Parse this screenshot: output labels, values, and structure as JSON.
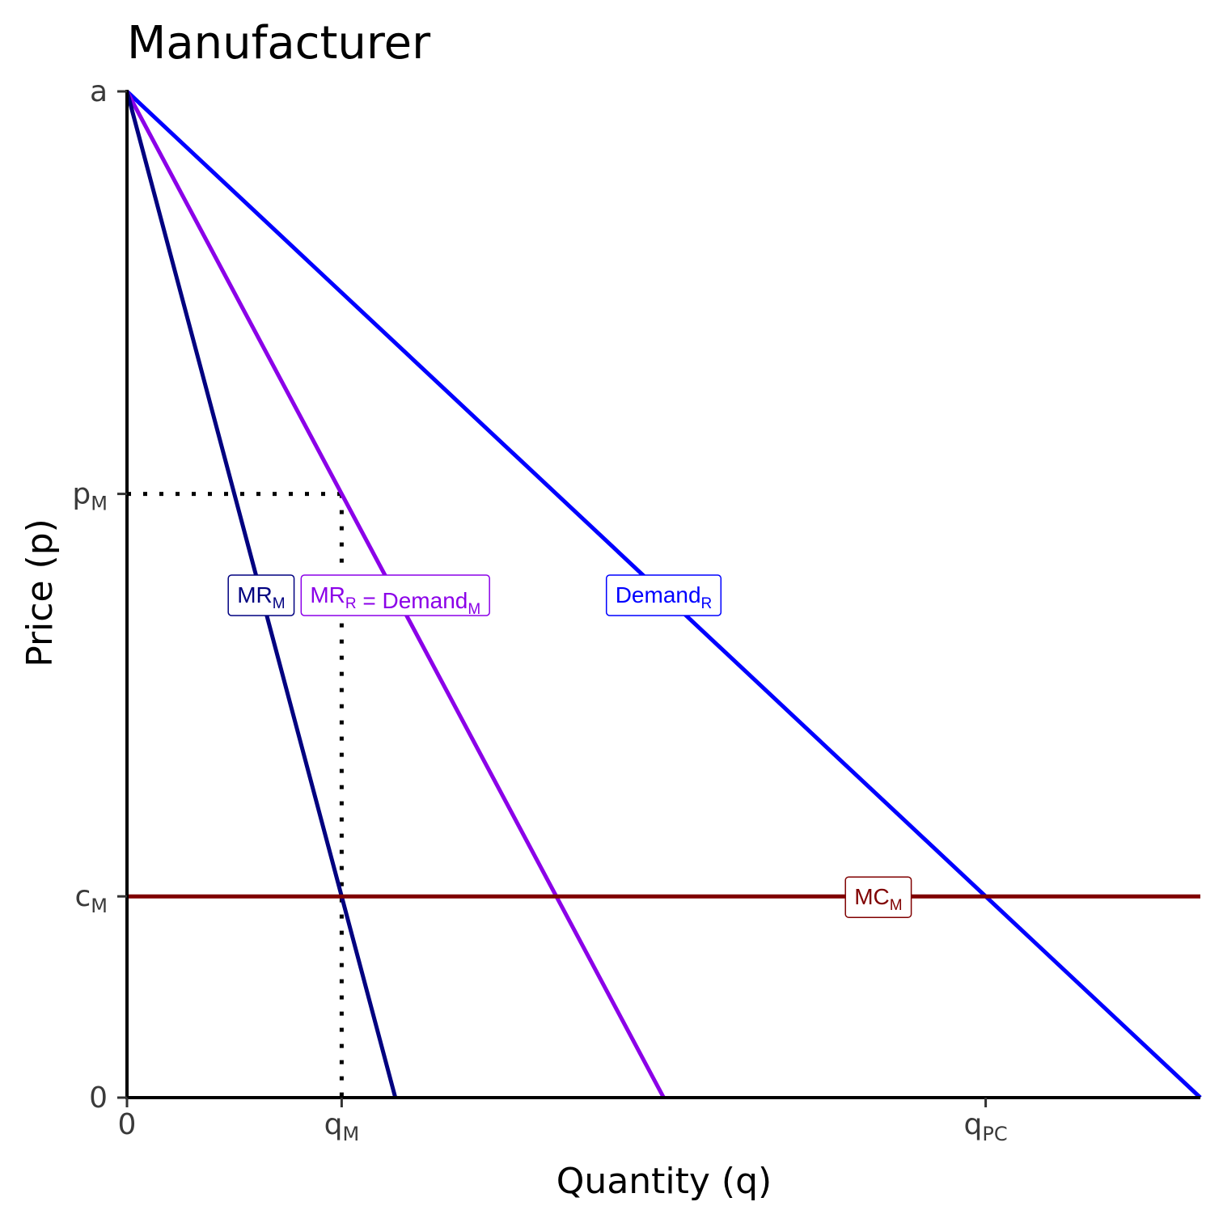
{
  "chart_data": {
    "type": "line",
    "title": "Manufacturer",
    "xlabel": "Quantity (q)",
    "ylabel": "Price (p)",
    "xlim": [
      0,
      1
    ],
    "ylim": [
      0,
      1
    ],
    "x_ticks": [
      {
        "value": 0,
        "main": "0",
        "sub": ""
      },
      {
        "value": 0.2,
        "main": "q",
        "sub": "M"
      },
      {
        "value": 0.8,
        "main": "q",
        "sub": "PC"
      }
    ],
    "y_ticks": [
      {
        "value": 0,
        "main": "0",
        "sub": ""
      },
      {
        "value": 0.2,
        "main": "c",
        "sub": "M"
      },
      {
        "value": 0.6,
        "main": "p",
        "sub": "M"
      },
      {
        "value": 1,
        "main": "a",
        "sub": ""
      }
    ],
    "series": [
      {
        "name": "Demand_R",
        "label_main": "Demand",
        "label_sub": "R",
        "color": "#0000ff",
        "x": [
          0,
          1
        ],
        "y": [
          1,
          0
        ],
        "label_at": [
          0.5,
          0.5
        ]
      },
      {
        "name": "MR_R = Demand_M",
        "label_parts": [
          [
            "MR",
            "R"
          ],
          [
            " = Demand",
            "M"
          ]
        ],
        "color": "#8b00e8",
        "x": [
          0,
          0.5
        ],
        "y": [
          1,
          0
        ],
        "label_at": [
          0.25,
          0.5
        ]
      },
      {
        "name": "MR_M",
        "label_main": "MR",
        "label_sub": "M",
        "color": "#000080",
        "x": [
          0,
          0.25
        ],
        "y": [
          1,
          0
        ],
        "label_at": [
          0.125,
          0.5
        ]
      },
      {
        "name": "MC_M",
        "label_main": "MC",
        "label_sub": "M",
        "color": "#800000",
        "x": [
          0,
          1
        ],
        "y": [
          0.2,
          0.2
        ],
        "label_at": [
          0.7,
          0.2
        ]
      }
    ],
    "reference_lines": [
      {
        "from": [
          0,
          0.6
        ],
        "to": [
          0.2,
          0.6
        ],
        "style": "dotted",
        "color": "#000000"
      },
      {
        "from": [
          0.2,
          0.6
        ],
        "to": [
          0.2,
          0
        ],
        "style": "dotted",
        "color": "#000000"
      }
    ],
    "grid": false,
    "legend": "none"
  }
}
